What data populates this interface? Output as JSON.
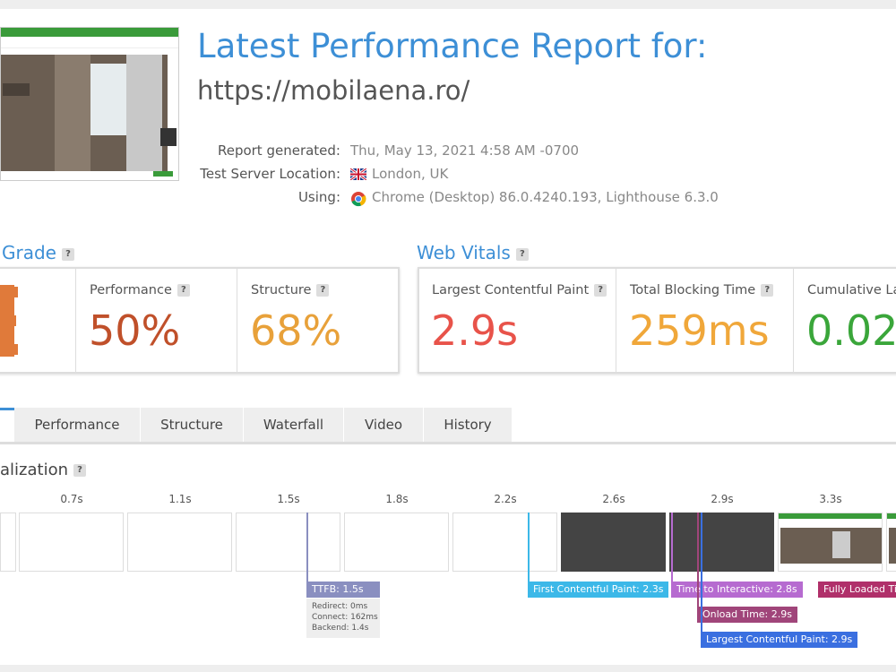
{
  "header": {
    "title": "Latest Performance Report for:",
    "url": "https://mobilaena.ro/"
  },
  "meta": [
    {
      "label": "Report generated:",
      "value": "Thu, May 13, 2021 4:58 AM -0700"
    },
    {
      "label": "Test Server Location:",
      "value": "London, UK"
    },
    {
      "label": "Using:",
      "value": "Chrome (Desktop) 86.0.4240.193, Lighthouse 6.3.0"
    }
  ],
  "grade": {
    "title": "Grade",
    "help": "?",
    "metrics": [
      {
        "label": "Performance",
        "help": "?",
        "value": "50%"
      },
      {
        "label": "Structure",
        "help": "?",
        "value": "68%"
      }
    ]
  },
  "web_vitals": {
    "title": "Web Vitals",
    "help": "?",
    "metrics": [
      {
        "label": "Largest Contentful Paint",
        "help": "?",
        "value": "2.9s"
      },
      {
        "label": "Total Blocking Time",
        "help": "?",
        "value": "259ms"
      },
      {
        "label": "Cumulative La",
        "value": "0.02"
      }
    ]
  },
  "tabs": [
    "Performance",
    "Structure",
    "Waterfall",
    "Video",
    "History"
  ],
  "section": {
    "title": "alization",
    "help": "?"
  },
  "timeline": {
    "ticks": [
      "0.7s",
      "1.1s",
      "1.5s",
      "1.8s",
      "2.2s",
      "2.6s",
      "2.9s",
      "3.3s"
    ],
    "markers": [
      {
        "label": "TTFB: 1.5s",
        "details": [
          "Redirect: 0ms",
          "Connect: 162ms",
          "Backend: 1.4s"
        ]
      },
      {
        "label": "First Contentful Paint: 2.3s"
      },
      {
        "label": "Time to Interactive: 2.8s"
      },
      {
        "label": "Onload Time: 2.9s"
      },
      {
        "label": "Largest Contentful Paint: 2.9s"
      },
      {
        "label": "Fully Loaded Ti"
      }
    ]
  }
}
